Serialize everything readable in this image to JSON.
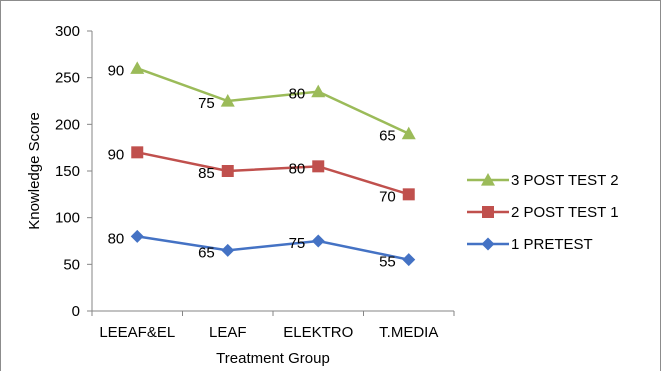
{
  "chart_data": {
    "type": "line",
    "xlabel": "Treatment Group",
    "ylabel": "Knowledge Score",
    "categories": [
      "LEEAF&EL",
      "LEAF",
      "ELEKTRO",
      "T.MEDIA"
    ],
    "ylim": [
      0,
      300
    ],
    "yticks": [
      "0",
      "50",
      "100",
      "150",
      "200",
      "250",
      "300"
    ],
    "grid": false,
    "legend_position": "right",
    "stacked": true,
    "series": [
      {
        "name": "1 PRETEST",
        "values": [
          80,
          65,
          75,
          55
        ],
        "labels": [
          "80",
          "65",
          "75",
          "55"
        ],
        "color": "#4472c4",
        "marker": "diamond"
      },
      {
        "name": "2 POST TEST 1",
        "values": [
          170,
          150,
          155,
          125
        ],
        "labels": [
          "90",
          "85",
          "80",
          "70"
        ],
        "color": "#c0504d",
        "marker": "square"
      },
      {
        "name": "3 POST TEST 2",
        "values": [
          260,
          225,
          235,
          190
        ],
        "labels": [
          "90",
          "75",
          "80",
          "65"
        ],
        "color": "#9bbb59",
        "marker": "triangle"
      }
    ]
  }
}
